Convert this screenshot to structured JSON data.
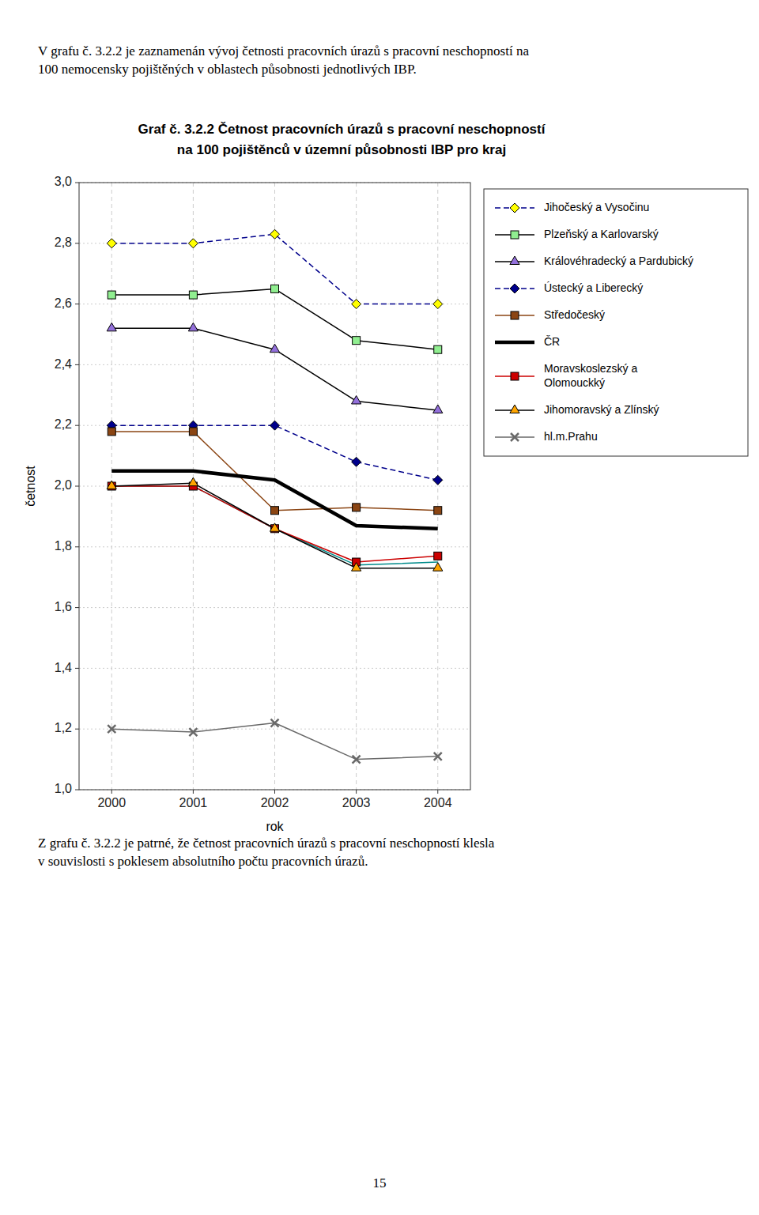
{
  "chart_data": {
    "type": "line",
    "title": "Graf č. 3.2.2  Četnost pracovních úrazů s pracovní neschopností\nna 100 pojištěnců v územní působnosti IBP pro kraj",
    "xlabel": "rok",
    "ylabel": "četnost",
    "x": [
      2000,
      2001,
      2002,
      2003,
      2004
    ],
    "xlim": [
      1999.6,
      2004.4
    ],
    "xticks": [
      2000,
      2001,
      2002,
      2003,
      2004
    ],
    "ylim": [
      1.0,
      3.0
    ],
    "yticks": [
      {
        "value": 1.0,
        "label": "1,0"
      },
      {
        "value": 1.2,
        "label": "1,2"
      },
      {
        "value": 1.4,
        "label": "1,4"
      },
      {
        "value": 1.6,
        "label": "1,6"
      },
      {
        "value": 1.8,
        "label": "1,8"
      },
      {
        "value": 2.0,
        "label": "2,0"
      },
      {
        "value": 2.2,
        "label": "2,2"
      },
      {
        "value": 2.4,
        "label": "2,4"
      },
      {
        "value": 2.6,
        "label": "2,6"
      },
      {
        "value": 2.8,
        "label": "2,8"
      },
      {
        "value": 3.0,
        "label": "3,0"
      }
    ],
    "grid": true,
    "legend": "right",
    "series": [
      {
        "values": [
          2.0,
          2.0,
          1.86,
          1.74,
          1.75
        ],
        "color": "#008B8B",
        "line_style": "solid",
        "marker": "none"
      },
      {
        "name": "Jihočeský a Vysočinu",
        "values": [
          2.8,
          2.8,
          2.83,
          2.6,
          2.6
        ],
        "color": "#00008B",
        "line_style": "dashed",
        "marker": "diamond",
        "colors": [
          "#FFFF00",
          "#FFFF00",
          "#FFFF00",
          "#FFFF00",
          "#FFFF00"
        ]
      },
      {
        "name": "Plzeňský a Karlovarský",
        "values": [
          2.63,
          2.63,
          2.65,
          2.48,
          2.45
        ],
        "color": "#000000",
        "line_style": "solid",
        "marker": "square",
        "colors": [
          "#90EE90",
          "#90EE90",
          "#90EE90",
          "#90EE90",
          "#90EE90"
        ]
      },
      {
        "name": "Královéhradecký a Pardubický",
        "values": [
          2.52,
          2.52,
          2.45,
          2.28,
          2.25
        ],
        "color": "#000000",
        "line_style": "solid",
        "marker": "triangle",
        "colors": [
          "#9370DB",
          "#9370DB",
          "#9370DB",
          "#9370DB",
          "#9370DB"
        ]
      },
      {
        "name": "Ústecký a Liberecký",
        "values": [
          2.2,
          2.2,
          2.2,
          2.08,
          2.02
        ],
        "color": "#00008B",
        "line_style": "dashed",
        "marker": "diamond",
        "colors": [
          "#00008B",
          "#00008B",
          "#00008B",
          "#00008B",
          "#00008B"
        ]
      },
      {
        "name": "Středočeský",
        "values": [
          2.18,
          2.18,
          1.92,
          1.93,
          1.92
        ],
        "color": "#8B4513",
        "line_style": "solid",
        "marker": "square",
        "colors": [
          "#8B4513",
          "#8B4513",
          "#8B4513",
          "#8B4513",
          "#8B4513"
        ]
      },
      {
        "name": "ČR",
        "values": [
          2.05,
          2.05,
          2.02,
          1.87,
          1.86
        ],
        "color": "#000000",
        "line_style": "solid",
        "marker": "none"
      },
      {
        "name": "Moravskoslezský a\nOlomouckký",
        "values": [
          2.0,
          2.0,
          1.86,
          1.75,
          1.77
        ],
        "color": "#CC0000",
        "line_style": "solid",
        "marker": "square",
        "colors": [
          "#CC0000",
          "#CC0000",
          "#CC0000",
          "#CC0000",
          "#CC0000"
        ]
      },
      {
        "name": "Jihomoravský a Zlínský",
        "values": [
          2.0,
          2.01,
          1.86,
          1.73,
          1.73
        ],
        "color": "#000000",
        "line_style": "solid",
        "marker": "triangle",
        "colors": [
          "#FFA500",
          "#FFA500",
          "#FFA500",
          "#FFA500",
          "#FFA500"
        ]
      },
      {
        "name": "hl.m.Prahu",
        "values": [
          1.2,
          1.19,
          1.22,
          1.1,
          1.11
        ],
        "color": "#696969",
        "line_style": "solid",
        "marker": "x",
        "colors": [
          "#696969",
          "#696969",
          "#696969",
          "#696969",
          "#696969"
        ]
      }
    ]
  },
  "page": {
    "paragraphs_above": [
      "V grafu č. 3.2.2 je zaznamenán vývoj četnosti pracovních úrazů s pracovní neschopností na",
      "100 nemocensky pojištěných v oblastech působnosti jednotlivých IBP."
    ],
    "paragraphs_below": [
      "Z grafu č. 3.2.2 je patrné, že četnost pracovních úrazů s pracovní neschopností klesla",
      "v souvislosti s poklesem absolutního počtu pracovních úrazů."
    ],
    "page_number": "15"
  }
}
